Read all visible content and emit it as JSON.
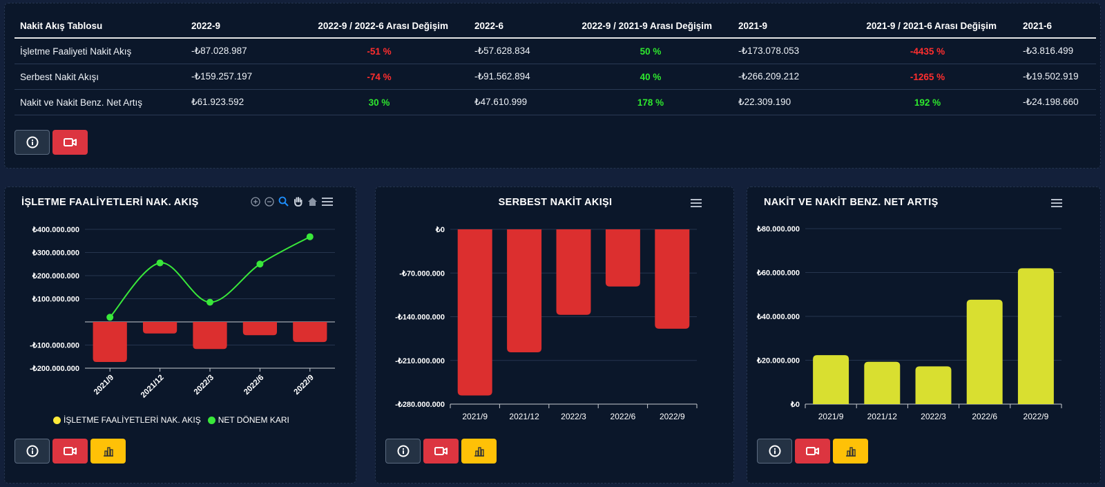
{
  "table": {
    "headers": [
      "Nakit Akış Tablosu",
      "2022-9",
      "2022-9 / 2022-6 Arası Değişim",
      "2022-6",
      "2022-9 / 2021-9 Arası Değişim",
      "2021-9",
      "2021-9 / 2021-6 Arası Değişim",
      "2021-6"
    ],
    "rows": [
      {
        "label": "İşletme Faaliyeti Nakit Akış",
        "v1": "-₺87.028.987",
        "c1": "-51 %",
        "v2": "-₺57.628.834",
        "c2": "50 %",
        "v3": "-₺173.078.053",
        "c3": "-4435 %",
        "v4": "-₺3.816.499"
      },
      {
        "label": "Serbest Nakit Akışı",
        "v1": "-₺159.257.197",
        "c1": "-74 %",
        "v2": "-₺91.562.894",
        "c2": "40 %",
        "v3": "-₺266.209.212",
        "c3": "-1265 %",
        "v4": "-₺19.502.919"
      },
      {
        "label": "Nakit ve Nakit Benz. Net Artış",
        "v1": "₺61.923.592",
        "c1": "30 %",
        "v2": "₺47.610.999",
        "c2": "178 %",
        "v3": "₺22.309.190",
        "c3": "192 %",
        "v4": "-₺24.198.660"
      }
    ]
  },
  "buttons": {
    "info_icon": "info-circle-icon",
    "video_icon": "video-camera-icon",
    "chart_icon": "bar-chart-icon"
  },
  "colors": {
    "background": "#13203a",
    "panel": "#0b172a",
    "negative": "#ff2e2e",
    "positive": "#2ee82e",
    "bar_red": "#dc2f2f",
    "bar_yellow": "#d9df30",
    "line_green": "#39e83a"
  },
  "chart_data": [
    {
      "type": "bar",
      "title": "İŞLETME FAALİYETLERİ NAK. AKIŞ",
      "categories": [
        "2021/9",
        "2021/12",
        "2022/3",
        "2022/6",
        "2022/9"
      ],
      "series": [
        {
          "name": "İŞLETME FAALİYETLERİ NAK. AKIŞ",
          "type": "bar",
          "values": [
            -173078053,
            -50000000,
            -117000000,
            -57628834,
            -87028987
          ]
        },
        {
          "name": "NET DÖNEM KARI",
          "type": "line",
          "values": [
            20000000,
            255000000,
            85000000,
            250000000,
            368000000
          ]
        }
      ],
      "ylim": [
        -200000000,
        400000000
      ],
      "yticks": [
        "₺400.000.000",
        "₺300.000.000",
        "₺200.000.000",
        "₺100.000.000",
        "",
        "-₺100.000.000",
        "-₺200.000.000"
      ],
      "legend": "bottom",
      "toolbar": [
        "zoom-in-icon",
        "zoom-out-icon",
        "magnifier-icon",
        "pan-hand-icon",
        "home-icon",
        "menu-icon"
      ]
    },
    {
      "type": "bar",
      "title": "SERBEST NAKİT AKIŞI",
      "categories": [
        "2021/9",
        "2021/12",
        "2022/3",
        "2022/6",
        "2022/9"
      ],
      "values": [
        -266209212,
        -197000000,
        -137000000,
        -91562894,
        -159257197
      ],
      "ylim": [
        -280000000,
        0
      ],
      "yticks": [
        "₺0",
        "-₺70.000.000",
        "-₺140.000.000",
        "-₺210.000.000",
        "-₺280.000.000"
      ]
    },
    {
      "type": "bar",
      "title": "NAKİT VE NAKİT BENZ. NET ARTIŞ",
      "categories": [
        "2021/9",
        "2021/12",
        "2022/3",
        "2022/6",
        "2022/9"
      ],
      "values": [
        22309190,
        19300000,
        17200000,
        47610999,
        61923592
      ],
      "ylim": [
        0,
        80000000
      ],
      "yticks": [
        "₺80.000.000",
        "₺60.000.000",
        "₺40.000.000",
        "₺20.000.000",
        "₺0"
      ]
    }
  ]
}
